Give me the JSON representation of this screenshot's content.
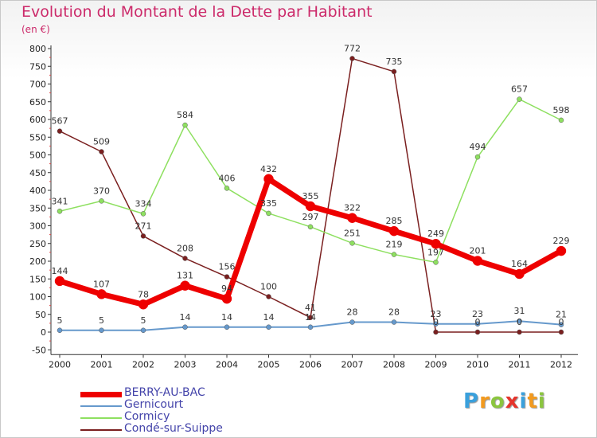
{
  "title": "Evolution du Montant de la Dette par Habitant",
  "unit": "(en €)",
  "logo": {
    "text": "Proxiti",
    "letter_colors": [
      "#3aa0dc",
      "#f29a1f",
      "#8bc53f",
      "#e5342c",
      "#3aa0dc",
      "#f29a1f",
      "#8bc53f"
    ]
  },
  "chart_data": {
    "type": "line",
    "x": [
      "2000",
      "2001",
      "2002",
      "2003",
      "2004",
      "2005",
      "2006",
      "2007",
      "2008",
      "2009",
      "2010",
      "2011",
      "2012"
    ],
    "ylim": [
      -50,
      800
    ],
    "ytick_step": 50,
    "grid": false,
    "legend_position": "bottom-left",
    "series": [
      {
        "name": "BERRY-AU-BAC",
        "color": "#ee0000",
        "width": 7,
        "values": [
          144,
          107,
          78,
          131,
          94,
          432,
          355,
          322,
          285,
          249,
          201,
          164,
          229
        ],
        "labels": [
          "144",
          "107",
          "78",
          "131",
          "94",
          "432",
          "355",
          "322",
          "285",
          "249",
          "201",
          "164",
          "229"
        ]
      },
      {
        "name": "Gernicourt",
        "color": "#6699cc",
        "width": 2,
        "values": [
          5,
          5,
          5,
          14,
          14,
          14,
          14,
          28,
          28,
          23,
          23,
          31,
          21
        ],
        "labels": [
          "5",
          "5",
          "5",
          "14",
          "14",
          "14",
          "14",
          "28",
          "28",
          "23",
          "23",
          "31",
          "21"
        ]
      },
      {
        "name": "Cormicy",
        "color": "#8ee060",
        "width": 1.5,
        "values": [
          341,
          370,
          334,
          584,
          406,
          335,
          297,
          251,
          219,
          197,
          494,
          657,
          598
        ],
        "labels": [
          "341",
          "370",
          "334",
          "584",
          "406",
          "335",
          "297",
          "251",
          "219",
          "197",
          "494",
          "657",
          "598"
        ]
      },
      {
        "name": "Condé-sur-Suippe",
        "color": "#7a1f1f",
        "width": 1.5,
        "values": [
          567,
          509,
          271,
          208,
          156,
          100,
          41,
          772,
          735,
          0,
          0,
          0,
          0
        ],
        "labels": [
          "567",
          "509",
          "271",
          "208",
          "156",
          "100",
          "41",
          "772",
          "735",
          "0",
          "0",
          "0",
          "0"
        ]
      }
    ]
  }
}
